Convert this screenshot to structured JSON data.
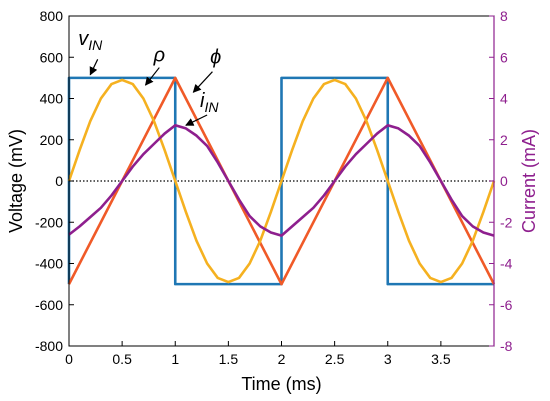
{
  "chart_data": {
    "type": "line",
    "xlabel": "Time (ms)",
    "ylabel_left": "Voltage (mV)",
    "ylabel_right": "Current (mA)",
    "xlim": [
      0,
      4
    ],
    "ylim_left": [
      -800,
      800
    ],
    "ylim_right": [
      -8,
      8
    ],
    "xticks": [
      0,
      0.5,
      1,
      1.5,
      2,
      2.5,
      3,
      3.5
    ],
    "xtick_labels": [
      "0",
      "0.5",
      "1",
      "1.5",
      "2",
      "2.5",
      "3",
      "3.5"
    ],
    "yticks_left": [
      -800,
      -600,
      -400,
      -200,
      0,
      200,
      400,
      600,
      800
    ],
    "ytick_labels_left": [
      "-800",
      "-600",
      "-400",
      "-200",
      "0",
      "200",
      "400",
      "600",
      "800"
    ],
    "yticks_right": [
      -8,
      -6,
      -4,
      -2,
      0,
      2,
      4,
      6,
      8
    ],
    "ytick_labels_right": [
      "-8",
      "-6",
      "-4",
      "-2",
      "0",
      "2",
      "4",
      "6",
      "8"
    ],
    "grid": false,
    "series": [
      {
        "key": "vin",
        "label_main": "v",
        "label_sub": "IN",
        "axis": "left",
        "color": "#1f77b4",
        "points": [
          [
            0,
            -500
          ],
          [
            0,
            500
          ],
          [
            1,
            500
          ],
          [
            1,
            -500
          ],
          [
            2,
            -500
          ],
          [
            2,
            500
          ],
          [
            3,
            500
          ],
          [
            3,
            -500
          ],
          [
            4,
            -500
          ]
        ]
      },
      {
        "key": "rho",
        "label_main": "ρ",
        "axis": "left",
        "color": "#f05a28",
        "points": [
          [
            0,
            -500
          ],
          [
            1,
            500
          ],
          [
            2,
            -500
          ],
          [
            3,
            500
          ],
          [
            4,
            -500
          ]
        ]
      },
      {
        "key": "phi",
        "label_main": "ϕ",
        "axis": "left",
        "color": "#f5b120",
        "points": [
          [
            0,
            0
          ],
          [
            0.1,
            150
          ],
          [
            0.2,
            290
          ],
          [
            0.3,
            400
          ],
          [
            0.4,
            470
          ],
          [
            0.5,
            490
          ],
          [
            0.6,
            470
          ],
          [
            0.7,
            400
          ],
          [
            0.8,
            290
          ],
          [
            0.9,
            150
          ],
          [
            1,
            0
          ],
          [
            1.1,
            -150
          ],
          [
            1.2,
            -290
          ],
          [
            1.3,
            -400
          ],
          [
            1.4,
            -470
          ],
          [
            1.5,
            -490
          ],
          [
            1.6,
            -470
          ],
          [
            1.7,
            -400
          ],
          [
            1.8,
            -290
          ],
          [
            1.9,
            -150
          ],
          [
            2,
            0
          ],
          [
            2.1,
            150
          ],
          [
            2.2,
            290
          ],
          [
            2.3,
            400
          ],
          [
            2.4,
            470
          ],
          [
            2.5,
            490
          ],
          [
            2.6,
            470
          ],
          [
            2.7,
            400
          ],
          [
            2.8,
            290
          ],
          [
            2.9,
            150
          ],
          [
            3,
            0
          ],
          [
            3.1,
            -150
          ],
          [
            3.2,
            -290
          ],
          [
            3.3,
            -400
          ],
          [
            3.4,
            -470
          ],
          [
            3.5,
            -490
          ],
          [
            3.6,
            -470
          ],
          [
            3.7,
            -400
          ],
          [
            3.8,
            -290
          ],
          [
            3.9,
            -150
          ],
          [
            4,
            0
          ]
        ]
      },
      {
        "key": "iin",
        "label_main": "i",
        "label_sub": "IN",
        "axis": "right",
        "color": "#8e1f8e",
        "points": [
          [
            0,
            -2.6
          ],
          [
            0.1,
            -2.2
          ],
          [
            0.2,
            -1.75
          ],
          [
            0.3,
            -1.3
          ],
          [
            0.4,
            -0.7
          ],
          [
            0.5,
            0
          ],
          [
            0.6,
            0.7
          ],
          [
            0.7,
            1.3
          ],
          [
            0.8,
            1.8
          ],
          [
            0.9,
            2.3
          ],
          [
            1,
            2.7
          ],
          [
            1.1,
            2.55
          ],
          [
            1.2,
            2.2
          ],
          [
            1.3,
            1.7
          ],
          [
            1.4,
            0.9
          ],
          [
            1.5,
            0
          ],
          [
            1.6,
            -0.9
          ],
          [
            1.7,
            -1.7
          ],
          [
            1.8,
            -2.2
          ],
          [
            1.9,
            -2.5
          ],
          [
            2,
            -2.65
          ],
          [
            2.1,
            -2.2
          ],
          [
            2.2,
            -1.75
          ],
          [
            2.3,
            -1.3
          ],
          [
            2.4,
            -0.7
          ],
          [
            2.5,
            0
          ],
          [
            2.6,
            0.7
          ],
          [
            2.7,
            1.3
          ],
          [
            2.8,
            1.8
          ],
          [
            2.9,
            2.3
          ],
          [
            3,
            2.7
          ],
          [
            3.1,
            2.55
          ],
          [
            3.2,
            2.2
          ],
          [
            3.3,
            1.7
          ],
          [
            3.4,
            0.9
          ],
          [
            3.5,
            0
          ],
          [
            3.6,
            -0.9
          ],
          [
            3.7,
            -1.7
          ],
          [
            3.8,
            -2.2
          ],
          [
            3.9,
            -2.5
          ],
          [
            4,
            -2.65
          ]
        ]
      },
      {
        "key": "zero",
        "axis": "left",
        "color": "#000000",
        "style": "dotted",
        "points": [
          [
            0,
            0
          ],
          [
            4,
            0
          ]
        ]
      }
    ],
    "annotations": [
      {
        "series": "vin",
        "text_main": "v",
        "text_sub": "IN",
        "text_at": [
          0.2,
          660
        ],
        "arrow_from": [
          0.27,
          590
        ],
        "arrow_to": [
          0.2,
          515
        ],
        "color": "#000000"
      },
      {
        "series": "rho",
        "text_main": "ρ",
        "text_at": [
          0.85,
          580
        ],
        "arrow_from": [
          0.85,
          550
        ],
        "arrow_to": [
          0.72,
          465
        ],
        "color": "#000000"
      },
      {
        "series": "phi",
        "text_main": "ϕ",
        "text_at": [
          1.38,
          570
        ],
        "arrow_from": [
          1.35,
          530
        ],
        "arrow_to": [
          1.17,
          430
        ],
        "color": "#000000"
      },
      {
        "series": "iin",
        "text_main": "i",
        "text_sub": "IN",
        "text_at": [
          1.32,
          360
        ],
        "arrow_from": [
          1.3,
          320
        ],
        "arrow_to": [
          1.1,
          270
        ],
        "color": "#000000"
      }
    ],
    "colors": {
      "right_axis": "#8e1f8e",
      "left_axis": "#000000"
    }
  }
}
